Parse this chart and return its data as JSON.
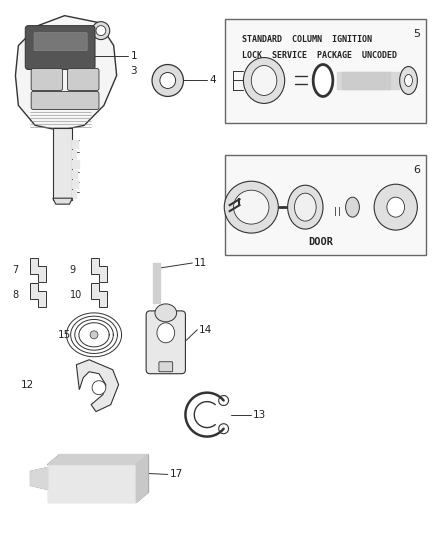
{
  "bg_color": "#ffffff",
  "line_color": "#333333",
  "text_color": "#222222",
  "box5_text1": "STANDARD  COLUMN  IGNITION",
  "box5_text2": "LOCK  SERVICE  PACKAGE  UNCODED",
  "box6_text": "DOOR",
  "figsize": [
    4.38,
    5.33
  ],
  "dpi": 100
}
